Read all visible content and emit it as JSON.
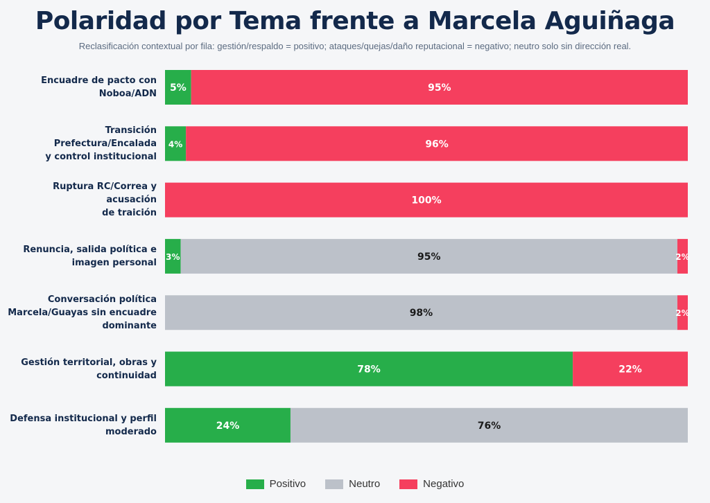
{
  "chart_data": {
    "type": "bar",
    "orientation": "horizontal",
    "stacked": true,
    "title": "Polaridad por Tema frente a Marcela Aguiñaga",
    "subtitle": "Reclasificación contextual por fila: gestión/respaldo = positivo; ataques/quejas/daño reputacional = negativo; neutro solo sin dirección real.",
    "categories": [
      [
        "Encuadre de pacto con Noboa/ADN"
      ],
      [
        "Transición Prefectura/Encalada",
        "y control institucional"
      ],
      [
        "Ruptura RC/Correa y acusación",
        "de traición"
      ],
      [
        "Renuncia, salida política e",
        "imagen personal"
      ],
      [
        "Conversación política",
        "Marcela/Guayas sin encuadre",
        "dominante"
      ],
      [
        "Gestión territorial, obras y",
        "continuidad"
      ],
      [
        "Defensa institucional y perfil",
        "moderado"
      ]
    ],
    "series": [
      {
        "name": "Positivo",
        "color": "#27ae4a",
        "label_color": "#ffffff",
        "values": [
          5,
          4,
          0,
          3,
          0,
          78,
          24
        ]
      },
      {
        "name": "Neutro",
        "color": "#bcc1c9",
        "label_color": "#1a1a1a",
        "values": [
          0,
          0,
          0,
          95,
          98,
          0,
          76
        ]
      },
      {
        "name": "Negativo",
        "color": "#f53f5e",
        "label_color": "#ffffff",
        "values": [
          95,
          96,
          100,
          2,
          2,
          22,
          0
        ]
      }
    ],
    "value_suffix": "%",
    "xlim": [
      0,
      100
    ],
    "legend_position": "bottom"
  }
}
